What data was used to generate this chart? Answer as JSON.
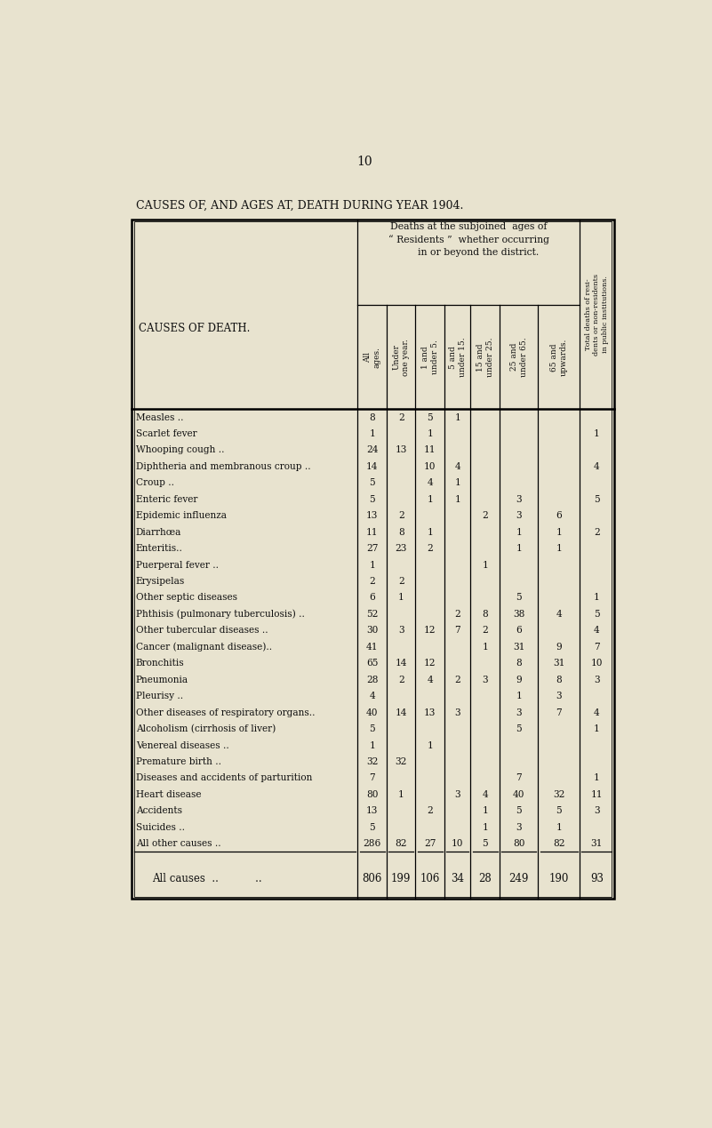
{
  "page_number": "10",
  "title": "CAUSES OF, AND AGES AT, DEATH DURING YEAR 1904.",
  "bg_color": "#e8e3cf",
  "text_color": "#111111",
  "col_headers": [
    "All\nages.",
    "Under\none year.",
    "1 and\nunder 5.",
    "5 and\nunder 15.",
    "15 and\nunder 25.",
    "25 and\nunder 65.",
    "65 and\nupwards."
  ],
  "total_col_header": "Total deaths of resi-\ndents or non-residents\nin public institutions.",
  "deaths_header": "Deaths at the subjoined  ages of\n“ Residents ”  whether occurring\n      in or beyond the district.",
  "cause_header": "CAUSES OF DEATH.",
  "rows": [
    {
      "label": "Measles ..",
      "dots": true,
      "vals": [
        "8",
        "2",
        "5",
        "1",
        "",
        "",
        ""
      ],
      "total": ""
    },
    {
      "label": "Scarlet fever",
      "dots": true,
      "vals": [
        "1",
        "",
        "1",
        "",
        "",
        "",
        ""
      ],
      "total": "1"
    },
    {
      "label": "Whooping cough ..",
      "dots": true,
      "vals": [
        "24",
        "13",
        "11",
        "",
        "",
        "",
        ""
      ],
      "total": ""
    },
    {
      "label": "Diphtheria and membranous croup ..",
      "dots": false,
      "vals": [
        "14",
        "",
        "10",
        "4",
        "",
        "",
        ""
      ],
      "total": "4"
    },
    {
      "label": "Croup ..",
      "dots": true,
      "vals": [
        "5",
        "",
        "4",
        "1",
        "",
        "",
        ""
      ],
      "total": ""
    },
    {
      "label": "Enteric fever",
      "dots": true,
      "vals": [
        "5",
        "",
        "1",
        "1",
        "",
        "3",
        ""
      ],
      "total": "5"
    },
    {
      "label": "Epidemic influenza",
      "dots": true,
      "vals": [
        "13",
        "2",
        "",
        "",
        "2",
        "3",
        "6"
      ],
      "total": ""
    },
    {
      "label": "Diarrhœa",
      "dots": true,
      "vals": [
        "11",
        "8",
        "1",
        "",
        "",
        "1",
        "1"
      ],
      "total": "2"
    },
    {
      "label": "Enteritis..",
      "dots": true,
      "vals": [
        "27",
        "23",
        "2",
        "",
        "",
        "1",
        "1"
      ],
      "total": ""
    },
    {
      "label": "Puerperal fever ..",
      "dots": false,
      "vals": [
        "1",
        "",
        "",
        "",
        "1",
        "",
        ""
      ],
      "total": ""
    },
    {
      "label": "Erysipelas",
      "dots": true,
      "vals": [
        "2",
        "2",
        "",
        "",
        "",
        "",
        ""
      ],
      "total": ""
    },
    {
      "label": "Other septic diseases",
      "dots": true,
      "vals": [
        "6",
        "1",
        "",
        "",
        "",
        "5",
        ""
      ],
      "total": "1"
    },
    {
      "label": "Phthisis (pulmonary tuberculosis) ..",
      "dots": false,
      "vals": [
        "52",
        "",
        "",
        "2",
        "8",
        "38",
        "4"
      ],
      "total": "5"
    },
    {
      "label": "Other tubercular diseases ..",
      "dots": false,
      "vals": [
        "30",
        "3",
        "12",
        "7",
        "2",
        "6",
        ""
      ],
      "total": "4"
    },
    {
      "label": "Cancer (malignant disease)..",
      "dots": false,
      "vals": [
        "41",
        "",
        "",
        "",
        "1",
        "31",
        "9"
      ],
      "total": "7"
    },
    {
      "label": "Bronchitis",
      "dots": true,
      "vals": [
        "65",
        "14",
        "12",
        "",
        "",
        "8",
        "31"
      ],
      "total": "10"
    },
    {
      "label": "Pneumonia",
      "dots": true,
      "vals": [
        "28",
        "2",
        "4",
        "2",
        "3",
        "9",
        "8"
      ],
      "total": "3"
    },
    {
      "label": "Pleurisy ..",
      "dots": true,
      "vals": [
        "4",
        "",
        "",
        "",
        "",
        "1",
        "3"
      ],
      "total": ""
    },
    {
      "label": "Other diseases of respiratory organs..",
      "dots": false,
      "vals": [
        "40",
        "14",
        "13",
        "3",
        "",
        "3",
        "7"
      ],
      "total": "4"
    },
    {
      "label": "Alcoholism (cirrhosis of liver)",
      "dots": true,
      "vals": [
        "5",
        "",
        "",
        "",
        "",
        "5",
        ""
      ],
      "total": "1"
    },
    {
      "label": "Venereal diseases ..",
      "dots": true,
      "vals": [
        "1",
        "",
        "1",
        "",
        "",
        "",
        ""
      ],
      "total": ""
    },
    {
      "label": "Premature birth ..",
      "dots": true,
      "vals": [
        "32",
        "32",
        "",
        "",
        "",
        "",
        ""
      ],
      "total": ""
    },
    {
      "label": "Diseases and accidents of parturition",
      "dots": false,
      "vals": [
        "7",
        "",
        "",
        "",
        "",
        "7",
        ""
      ],
      "total": "1"
    },
    {
      "label": "Heart disease",
      "dots": true,
      "vals": [
        "80",
        "1",
        "",
        "3",
        "4",
        "40",
        "32"
      ],
      "total": "11"
    },
    {
      "label": "Accidents",
      "dots": true,
      "vals": [
        "13",
        "",
        "2",
        "",
        "1",
        "5",
        "5"
      ],
      "total": "3"
    },
    {
      "label": "Suicides ..",
      "dots": true,
      "vals": [
        "5",
        "",
        "",
        "",
        "1",
        "3",
        "1"
      ],
      "total": ""
    },
    {
      "label": "All other causes ..",
      "dots": true,
      "vals": [
        "286",
        "82",
        "27",
        "10",
        "5",
        "80",
        "82"
      ],
      "total": "31"
    }
  ],
  "total_row": {
    "label": "All causes",
    "vals": [
      "806",
      "199",
      "106",
      "34",
      "28",
      "249",
      "190"
    ],
    "total": "93"
  }
}
